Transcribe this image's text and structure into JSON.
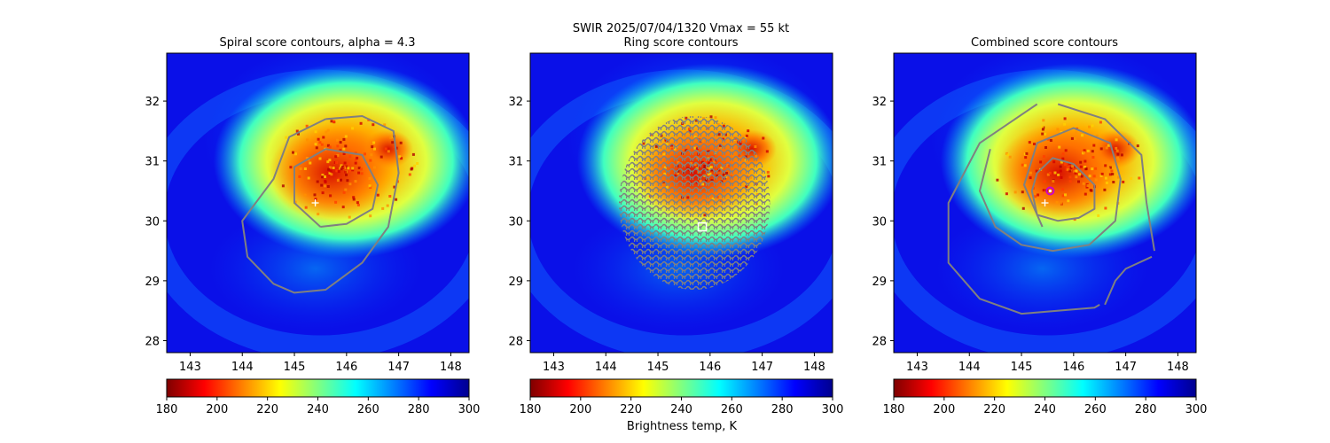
{
  "figure": {
    "suptitle": "SWIR  2025/07/04/1320    Vmax = 55 kt",
    "colorbar_label": "Brightness temp, K"
  },
  "colormap": {
    "name": "jet_r",
    "range": [
      180,
      300
    ],
    "stops": [
      "#7f0000",
      "#ff0000",
      "#ff8000",
      "#ffff00",
      "#80ff80",
      "#00ffff",
      "#0080ff",
      "#0000ff",
      "#00008f"
    ]
  },
  "colors": {
    "contour": "#808080",
    "marker_plus": "#ffffff",
    "marker_square": "#ffffff",
    "marker_circle": "#cc00cc"
  },
  "chart_data": [
    {
      "type": "heatmap",
      "title": "Spiral score contours, alpha =  4.3",
      "xlim": [
        142.55,
        148.35
      ],
      "ylim": [
        27.8,
        32.8
      ],
      "xticks": [
        143,
        144,
        145,
        146,
        147,
        148
      ],
      "yticks": [
        28,
        29,
        30,
        31,
        32
      ],
      "grid": false,
      "colorbar_ticks": [
        180,
        200,
        220,
        240,
        260,
        280,
        300
      ],
      "markers": [
        {
          "shape": "plus",
          "x": 145.4,
          "y": 30.3
        }
      ],
      "contours": [
        [
          [
            145.5,
            29.9
          ],
          [
            145.0,
            30.3
          ],
          [
            145.0,
            30.9
          ],
          [
            145.6,
            31.2
          ],
          [
            146.3,
            31.1
          ],
          [
            146.6,
            30.6
          ],
          [
            146.5,
            30.2
          ],
          [
            146.0,
            29.95
          ],
          [
            145.5,
            29.9
          ]
        ],
        [
          [
            145.6,
            31.7
          ],
          [
            144.9,
            31.4
          ],
          [
            144.6,
            30.7
          ],
          [
            144.0,
            30.0
          ],
          [
            144.1,
            29.4
          ],
          [
            144.6,
            28.95
          ],
          [
            145.0,
            28.8
          ],
          [
            145.6,
            28.85
          ],
          [
            146.3,
            29.3
          ],
          [
            146.8,
            29.9
          ],
          [
            147.0,
            30.8
          ],
          [
            146.9,
            31.5
          ],
          [
            146.3,
            31.75
          ],
          [
            145.6,
            31.7
          ]
        ]
      ]
    },
    {
      "type": "heatmap",
      "title": "Ring score contours",
      "xlim": [
        142.55,
        148.35
      ],
      "ylim": [
        27.8,
        32.8
      ],
      "xticks": [
        143,
        144,
        145,
        146,
        147,
        148
      ],
      "yticks": [
        28,
        29,
        30,
        31,
        32
      ],
      "grid": false,
      "colorbar_ticks": [
        180,
        200,
        220,
        240,
        260,
        280,
        300
      ],
      "markers": [
        {
          "shape": "square",
          "x": 145.85,
          "y": 29.9
        }
      ],
      "contours": [],
      "ring_region": {
        "cx": 145.7,
        "cy": 30.3,
        "rx": 1.45,
        "ry": 1.45
      }
    },
    {
      "type": "heatmap",
      "title": "Combined score contours",
      "xlim": [
        142.55,
        148.35
      ],
      "ylim": [
        27.8,
        32.8
      ],
      "xticks": [
        143,
        144,
        145,
        146,
        147,
        148
      ],
      "yticks": [
        28,
        29,
        30,
        31,
        32
      ],
      "grid": false,
      "colorbar_ticks": [
        180,
        200,
        220,
        240,
        260,
        280,
        300
      ],
      "markers": [
        {
          "shape": "plus",
          "x": 145.45,
          "y": 30.3
        },
        {
          "shape": "circle",
          "x": 145.55,
          "y": 30.5
        }
      ],
      "contours": [
        [
          [
            145.3,
            30.8
          ],
          [
            145.6,
            31.05
          ],
          [
            146.0,
            30.95
          ],
          [
            146.4,
            30.6
          ],
          [
            146.4,
            30.2
          ],
          [
            146.1,
            30.05
          ],
          [
            145.7,
            30.0
          ],
          [
            145.3,
            30.1
          ],
          [
            145.2,
            30.5
          ],
          [
            145.3,
            30.8
          ]
        ],
        [
          [
            145.4,
            29.9
          ],
          [
            145.05,
            30.6
          ],
          [
            145.3,
            31.3
          ],
          [
            146.0,
            31.55
          ],
          [
            146.7,
            31.3
          ],
          [
            146.9,
            30.7
          ],
          [
            146.8,
            30.0
          ],
          [
            146.3,
            29.6
          ],
          [
            145.6,
            29.5
          ],
          [
            145.0,
            29.6
          ],
          [
            144.5,
            29.9
          ],
          [
            144.2,
            30.5
          ],
          [
            144.4,
            31.2
          ]
        ],
        [
          [
            145.3,
            31.95
          ],
          [
            144.2,
            31.3
          ],
          [
            143.6,
            30.3
          ],
          [
            143.6,
            29.3
          ],
          [
            144.2,
            28.7
          ],
          [
            145.0,
            28.45
          ],
          [
            146.4,
            28.55
          ],
          [
            146.5,
            28.6
          ]
        ],
        [
          [
            145.7,
            31.95
          ],
          [
            146.6,
            31.7
          ],
          [
            147.3,
            31.1
          ],
          [
            147.4,
            30.3
          ],
          [
            147.55,
            29.5
          ]
        ],
        [
          [
            146.6,
            28.6
          ],
          [
            146.8,
            29.0
          ],
          [
            147.0,
            29.2
          ],
          [
            147.5,
            29.4
          ]
        ]
      ]
    }
  ]
}
